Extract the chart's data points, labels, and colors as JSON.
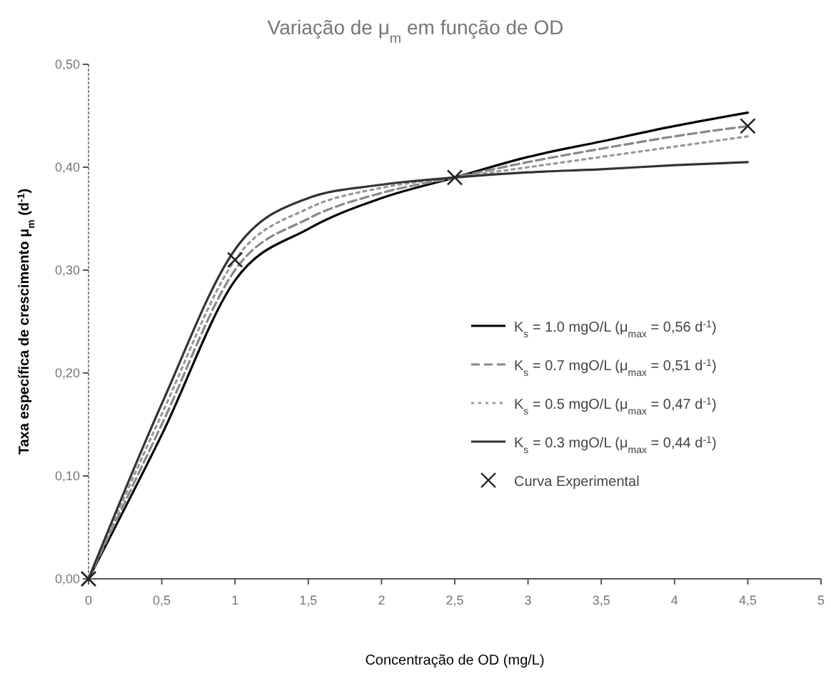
{
  "chart_data": {
    "type": "line",
    "title": "Variação de μ$_{m}$ em função de OD",
    "xlabel": "Concentração de OD (mg/L)",
    "ylabel": "Taxa específica de crescimento μ$_{m}$ (d$^{-1}$)",
    "x": [
      0,
      0.5,
      1,
      1.5,
      2,
      2.5,
      3,
      3.5,
      4,
      4.5
    ],
    "series": [
      {
        "name": "K$_{s}$ = 1.0 mgO/L (μ$_{max}$ = 0,56 d$^{-1}$)",
        "color": "#000000",
        "line_style": "solid",
        "values": [
          0,
          0.14,
          0.29,
          0.34,
          0.37,
          0.39,
          0.41,
          0.425,
          0.44,
          0.453
        ]
      },
      {
        "name": "K$_{s}$ = 0.7 mgO/L (μ$_{max}$ = 0,51 d$^{-1}$)",
        "color": "#888888",
        "line_style": "dashed",
        "values": [
          0,
          0.15,
          0.3,
          0.35,
          0.375,
          0.39,
          0.405,
          0.418,
          0.43,
          0.44
        ]
      },
      {
        "name": "K$_{s}$ = 0.5 mgO/L (μ$_{max}$ = 0,47 d$^{-1}$)",
        "color": "#999999",
        "line_style": "dotted",
        "values": [
          0,
          0.16,
          0.31,
          0.36,
          0.38,
          0.39,
          0.4,
          0.41,
          0.42,
          0.43
        ]
      },
      {
        "name": "K$_{s}$ = 0.3 mgO/L (μ$_{max}$ = 0,44 d$^{-1}$)",
        "color": "#333333",
        "line_style": "solid",
        "values": [
          0,
          0.17,
          0.32,
          0.37,
          0.383,
          0.39,
          0.395,
          0.398,
          0.402,
          0.405
        ]
      },
      {
        "name": "Curva Experimental",
        "type": "scatter",
        "marker": "cross",
        "color": "#222222",
        "x": [
          0,
          1,
          2.5,
          4.5
        ],
        "values": [
          0,
          0.31,
          0.39,
          0.44
        ]
      }
    ],
    "xlim": [
      0,
      5
    ],
    "xticks": [
      0,
      {
        "value": 0.5,
        "label": "0,5"
      },
      1,
      {
        "value": 1.5,
        "label": "1,5"
      },
      2,
      {
        "value": 2.5,
        "label": "2,5"
      },
      3,
      {
        "value": 3.5,
        "label": "3,5"
      },
      4,
      {
        "value": 4.5,
        "label": "4,5"
      },
      5
    ],
    "ylim": [
      0,
      0.5
    ],
    "yticks": [
      {
        "value": 0,
        "label": "0,00"
      },
      {
        "value": 0.1,
        "label": "0,10"
      },
      {
        "value": 0.2,
        "label": "0,20"
      },
      {
        "value": 0.3,
        "label": "0,30"
      },
      {
        "value": 0.4,
        "label": "0,40"
      },
      {
        "value": 0.5,
        "label": "0,50"
      }
    ],
    "grid": false,
    "legend": "right"
  }
}
